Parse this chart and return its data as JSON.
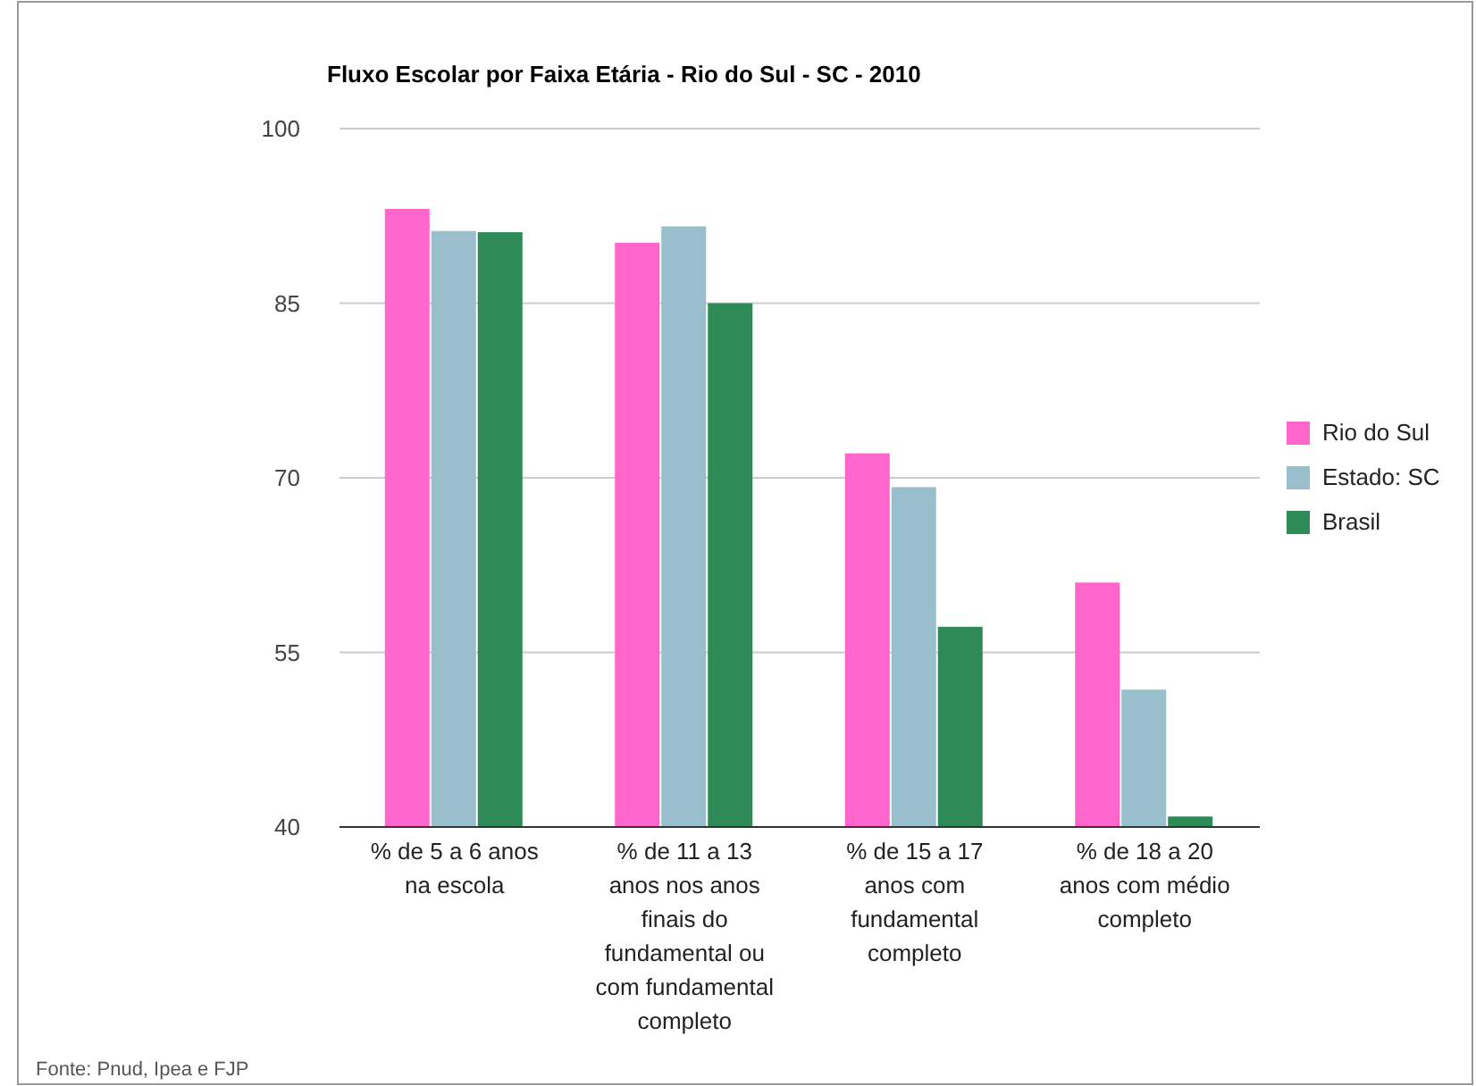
{
  "chart_data": {
    "type": "bar",
    "title": "Fluxo Escolar por Faixa Etária - Rio do Sul - SC - 2010",
    "categories": [
      "% de 5 a 6 anos na escola",
      "% de 11 a 13 anos nos anos finais do fundamental ou com fundamental completo",
      "% de 15 a 17 anos com fundamental completo",
      "% de 18 a 20 anos com médio completo"
    ],
    "series": [
      {
        "name": "Rio do Sul",
        "color": "#ff66cc",
        "values": [
          93.1,
          90.2,
          72.1,
          61.0
        ]
      },
      {
        "name": "Estado: SC",
        "color": "#99bfcc",
        "values": [
          91.2,
          91.6,
          69.2,
          51.8
        ]
      },
      {
        "name": "Brasil",
        "color": "#2e8b57",
        "values": [
          91.1,
          85.0,
          57.2,
          40.9
        ]
      }
    ],
    "ylim": [
      40,
      100
    ],
    "yticks": [
      40,
      55,
      70,
      85,
      100
    ],
    "grid": "y",
    "legend": "right",
    "annotations": [
      "Fonte: Pnud, Ipea e FJP"
    ]
  }
}
